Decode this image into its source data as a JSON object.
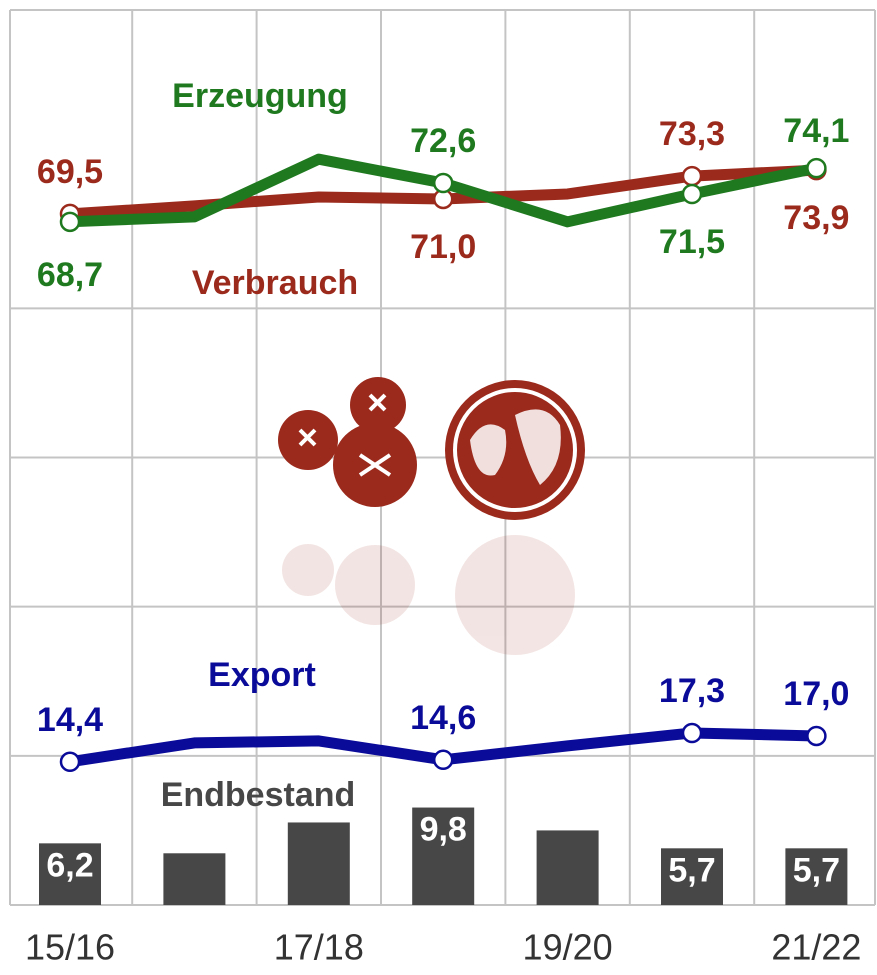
{
  "chart_data": {
    "type": "line",
    "categories": [
      "15/16",
      null,
      "17/18",
      null,
      "19/20",
      null,
      "21/22"
    ],
    "series": [
      {
        "name": "Erzeugung",
        "color": "#1f7a1f",
        "values": [
          68.7,
          69.2,
          75.0,
          72.6,
          68.7,
          71.5,
          74.1
        ],
        "value_labels": [
          "68,7",
          null,
          null,
          "72,6",
          null,
          "71,5",
          "74,1"
        ]
      },
      {
        "name": "Verbrauch",
        "color": "#9b2a1c",
        "values": [
          69.5,
          70.3,
          71.2,
          71.0,
          71.5,
          73.3,
          73.9
        ],
        "value_labels": [
          "69,5",
          null,
          null,
          "71,0",
          null,
          "73,3",
          "73,9"
        ]
      },
      {
        "name": "Export",
        "color": "#0b0b9a",
        "values": [
          14.4,
          16.3,
          16.5,
          14.6,
          16.0,
          17.3,
          17.0
        ],
        "value_labels": [
          "14,4",
          null,
          null,
          "14,6",
          null,
          "17,3",
          "17,0"
        ]
      },
      {
        "name": "Endbestand",
        "color": "#474747",
        "type": "bar",
        "values": [
          6.2,
          5.2,
          8.3,
          9.8,
          7.5,
          5.7,
          5.7
        ],
        "value_labels": [
          "6,2",
          null,
          null,
          "9,8",
          null,
          "5,7",
          "5,7"
        ]
      }
    ],
    "ylim": [
      0,
      90
    ],
    "yticks": [
      0,
      15,
      30,
      45,
      60
    ],
    "grid": true
  }
}
